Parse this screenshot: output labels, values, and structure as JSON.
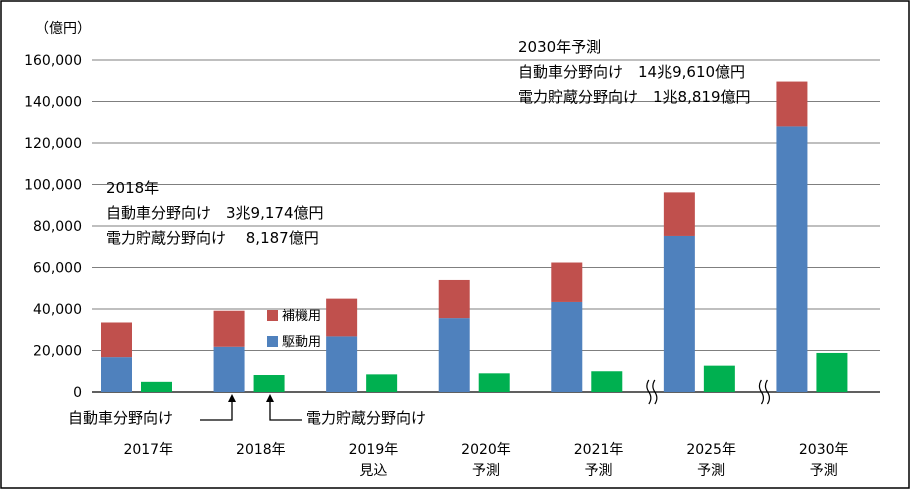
{
  "chart_data": {
    "type": "bar",
    "unit_label": "（億円）",
    "categories": [
      {
        "line1": "2017年",
        "line2": ""
      },
      {
        "line1": "2018年",
        "line2": ""
      },
      {
        "line1": "2019年",
        "line2": "見込"
      },
      {
        "line1": "2020年",
        "line2": "予測"
      },
      {
        "line1": "2021年",
        "line2": "予測"
      },
      {
        "line1": "2025年",
        "line2": "予測"
      },
      {
        "line1": "2030年",
        "line2": "予測"
      }
    ],
    "series": [
      {
        "group": "自動車分野向け",
        "name": "駆動用",
        "color": "#4F81BD",
        "values": [
          16800,
          21800,
          26800,
          35600,
          43400,
          75200,
          128000
        ]
      },
      {
        "group": "自動車分野向け",
        "name": "補機用",
        "color": "#C0504D",
        "values": [
          16700,
          17374,
          18200,
          18400,
          19000,
          21000,
          21610
        ]
      },
      {
        "group": "電力貯蔵分野向け",
        "name": "電力貯蔵分野向け",
        "color": "#00B050",
        "values": [
          4900,
          8187,
          8500,
          9000,
          10000,
          12700,
          18819
        ]
      }
    ],
    "ylim": [
      0,
      160000
    ],
    "yticks": [
      0,
      20000,
      40000,
      60000,
      80000,
      100000,
      120000,
      140000,
      160000
    ],
    "ytick_labels": [
      "0",
      "20,000",
      "40,000",
      "60,000",
      "80,000",
      "100,000",
      "120,000",
      "140,000",
      "160,000"
    ],
    "grid": true,
    "axis_breaks": [
      "2021年",
      "2025年"
    ],
    "legend": {
      "items": [
        "補機用",
        "駆動用"
      ],
      "placement": "inside, beside 2018 bar"
    },
    "annotations": {
      "note2018": {
        "title": "2018年",
        "line1": "自動車分野向け　3兆9,174億円",
        "line2": "電力貯蔵分野向け　 8,187億円"
      },
      "note2030": {
        "title": "2030年予測",
        "line1": "自動車分野向け　14兆9,610億円",
        "line2": "電力貯蔵分野向け　1兆8,819億円"
      },
      "callout_auto": "自動車分野向け",
      "callout_storage": "電力貯蔵分野向け"
    }
  }
}
